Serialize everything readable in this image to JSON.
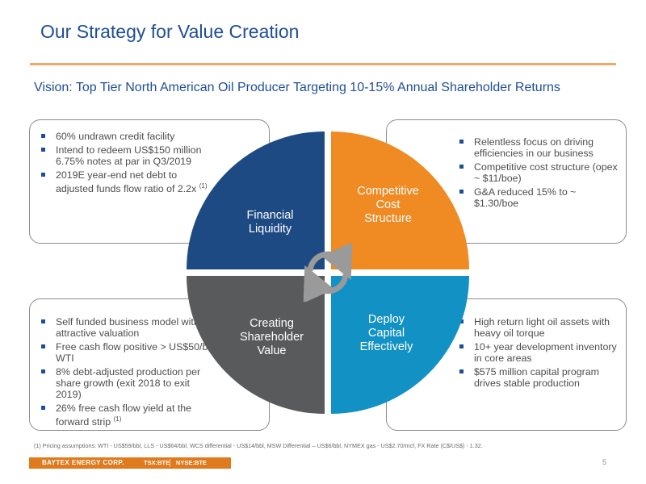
{
  "title": "Our Strategy for Value Creation",
  "vision": "Vision: Top Tier North American Oil Producer Targeting 10-15% Annual Shareholder Returns",
  "quadrants": {
    "tl": {
      "label": [
        "Financial",
        "Liquidity"
      ],
      "color": "#1e4a84"
    },
    "tr": {
      "label": [
        "Competitive",
        "Cost",
        "Structure"
      ],
      "color": "#f08a23"
    },
    "bl": {
      "label": [
        "Creating",
        "Shareholder",
        "Value"
      ],
      "color": "#585a5c"
    },
    "br": {
      "label": [
        "Deploy",
        "Capital",
        "Effectively"
      ],
      "color": "#1291c4"
    }
  },
  "boxes": {
    "tl": [
      {
        "text": "60% undrawn credit facility"
      },
      {
        "text": "Intend to redeem US$150 million 6.75% notes at par in Q3/2019"
      },
      {
        "text": "2019E year-end net debt to adjusted funds flow ratio of 2.2x",
        "sup": "(1)"
      }
    ],
    "tr": [
      {
        "text": "Relentless focus on driving efficiencies in our business"
      },
      {
        "text": "Competitive cost structure (opex ~ $11/boe)"
      },
      {
        "text": "G&A reduced 15% to ~ $1.30/boe"
      }
    ],
    "bl": [
      {
        "text": "Self funded business model with attractive valuation"
      },
      {
        "text": "Free cash flow positive > US$50/bbl WTI"
      },
      {
        "text": "8% debt-adjusted production per share growth (exit 2018 to exit 2019)"
      },
      {
        "text": "26% free cash flow yield at the forward strip",
        "sup": "(1)"
      }
    ],
    "br": [
      {
        "text": "High return light oil assets with heavy oil torque"
      },
      {
        "text": "10+ year development inventory in core areas"
      },
      {
        "text": "$575 million capital program drives stable production"
      }
    ]
  },
  "footnote": "(1)     Pricing assumptions: WTI - US$59/bbl, LLS  - US$64/bbl, WCS differential - US$14/bbl, MSW Differential – US$6/bbl, NYMEX gas - US$2.70/mcf, FX Rate (C$/US$) - 1.32.",
  "footer": {
    "brand": "BAYTEX ENERGY CORP.",
    "tsx": "TSX:BTE",
    "nyse": "NYSE:BTE",
    "page": "5"
  },
  "colors": {
    "accent_blue": "#1f4e96",
    "accent_orange": "#e07a1e"
  },
  "icons": {
    "cycle": "circular-arrows-icon",
    "bullet": "square-bullet"
  }
}
